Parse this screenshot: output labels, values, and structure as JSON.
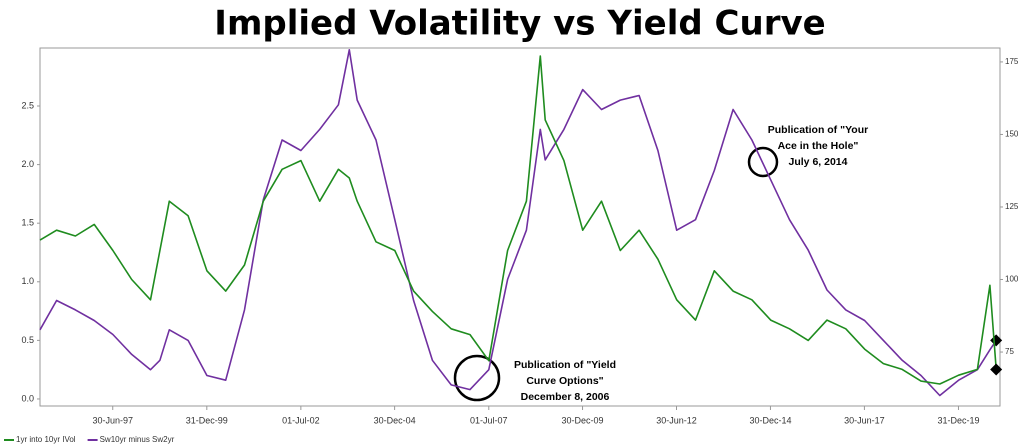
{
  "chart_data": {
    "type": "line",
    "title": "Implied Volatility vs Yield Curve",
    "xlim": [
      "23-Jul-95",
      "08-Feb-21"
    ],
    "xticks": [
      "30-Jun-97",
      "31-Dec-99",
      "01-Jul-02",
      "30-Dec-04",
      "01-Jul-07",
      "30-Dec-09",
      "30-Jun-12",
      "30-Dec-14",
      "30-Jun-17",
      "31-Dec-19"
    ],
    "ylim": [
      -0.06,
      2.995
    ],
    "yticks": [
      {
        "value": 0,
        "label": "0.0"
      },
      0.5,
      {
        "value": 1,
        "label": "1.0"
      },
      1.5,
      {
        "value": 2,
        "label": "2.0"
      },
      2.5
    ],
    "y2lim": [
      56.4,
      179.8
    ],
    "y2ticks": [
      75,
      100,
      125,
      150,
      175
    ],
    "x": [
      "23-Jul-95",
      "01-Jan-96",
      "01-Jul-96",
      "01-Jan-97",
      "01-Jul-97",
      "01-Jan-98",
      "01-Jul-98",
      "01-Oct-98",
      "01-Jan-99",
      "01-Jul-99",
      "01-Jan-00",
      "01-Jul-00",
      "01-Jan-01",
      "01-Jul-01",
      "01-Jan-02",
      "01-Jul-02",
      "01-Jan-03",
      "01-Jul-03",
      "15-Oct-03",
      "01-Jan-04",
      "01-Jul-04",
      "01-Jan-05",
      "01-Jul-05",
      "01-Jan-06",
      "01-Jul-06",
      "01-Jan-07",
      "01-Jul-07",
      "01-Jan-08",
      "01-Jul-08",
      "15-Nov-08",
      "01-Jan-09",
      "01-Jul-09",
      "01-Jan-10",
      "01-Jul-10",
      "01-Jan-11",
      "01-Jul-11",
      "01-Jan-12",
      "01-Jul-12",
      "01-Jan-13",
      "01-Jul-13",
      "01-Jan-14",
      "01-Jul-14",
      "01-Jan-15",
      "01-Jul-15",
      "01-Jan-16",
      "01-Jul-16",
      "01-Jan-17",
      "01-Jul-17",
      "01-Jan-18",
      "01-Jul-18",
      "01-Jan-19",
      "01-Jul-19",
      "01-Jan-20",
      "01-Jul-20",
      "01-Nov-20",
      "01-Jan-21"
    ],
    "series": [
      {
        "name": "1yr into 10yr IVol",
        "color": "#1f8c1f",
        "axis": "y2",
        "values": [
          113.6,
          117,
          115,
          119,
          110,
          100,
          93,
          110,
          127,
          122,
          103,
          96,
          105,
          127,
          138,
          141,
          127,
          138,
          135,
          127,
          113,
          110,
          96,
          89,
          83,
          81,
          72,
          110,
          127,
          177,
          155,
          141,
          117,
          127,
          110,
          117,
          107,
          93,
          86,
          103,
          96,
          93,
          86,
          83,
          79,
          86,
          83,
          76,
          71,
          69,
          65,
          64,
          67,
          69,
          98,
          69
        ]
      },
      {
        "name": "Sw10yr minus Sw2yr",
        "color": "#7030a0",
        "values": [
          0.59,
          0.84,
          0.76,
          0.67,
          0.55,
          0.38,
          0.25,
          0.33,
          0.59,
          0.5,
          0.2,
          0.16,
          0.76,
          1.7,
          2.21,
          2.12,
          2.3,
          2.51,
          2.98,
          2.55,
          2.21,
          1.53,
          0.84,
          0.33,
          0.12,
          0.08,
          0.25,
          1.02,
          1.44,
          2.3,
          2.04,
          2.3,
          2.64,
          2.47,
          2.55,
          2.59,
          2.12,
          1.44,
          1.53,
          1.95,
          2.47,
          2.21,
          1.87,
          1.53,
          1.27,
          0.93,
          0.76,
          0.67,
          0.5,
          0.33,
          0.2,
          0.03,
          0.16,
          0.25,
          0.42,
          0.5
        ]
      }
    ],
    "annotations": [
      {
        "lines": [
          "Publication of \"Yield",
          "Curve Options\"",
          "December 8, 2006"
        ]
      },
      {
        "lines": [
          "Publication of \"Your",
          "Ace in the Hole\"",
          "July 6, 2014"
        ]
      }
    ]
  }
}
